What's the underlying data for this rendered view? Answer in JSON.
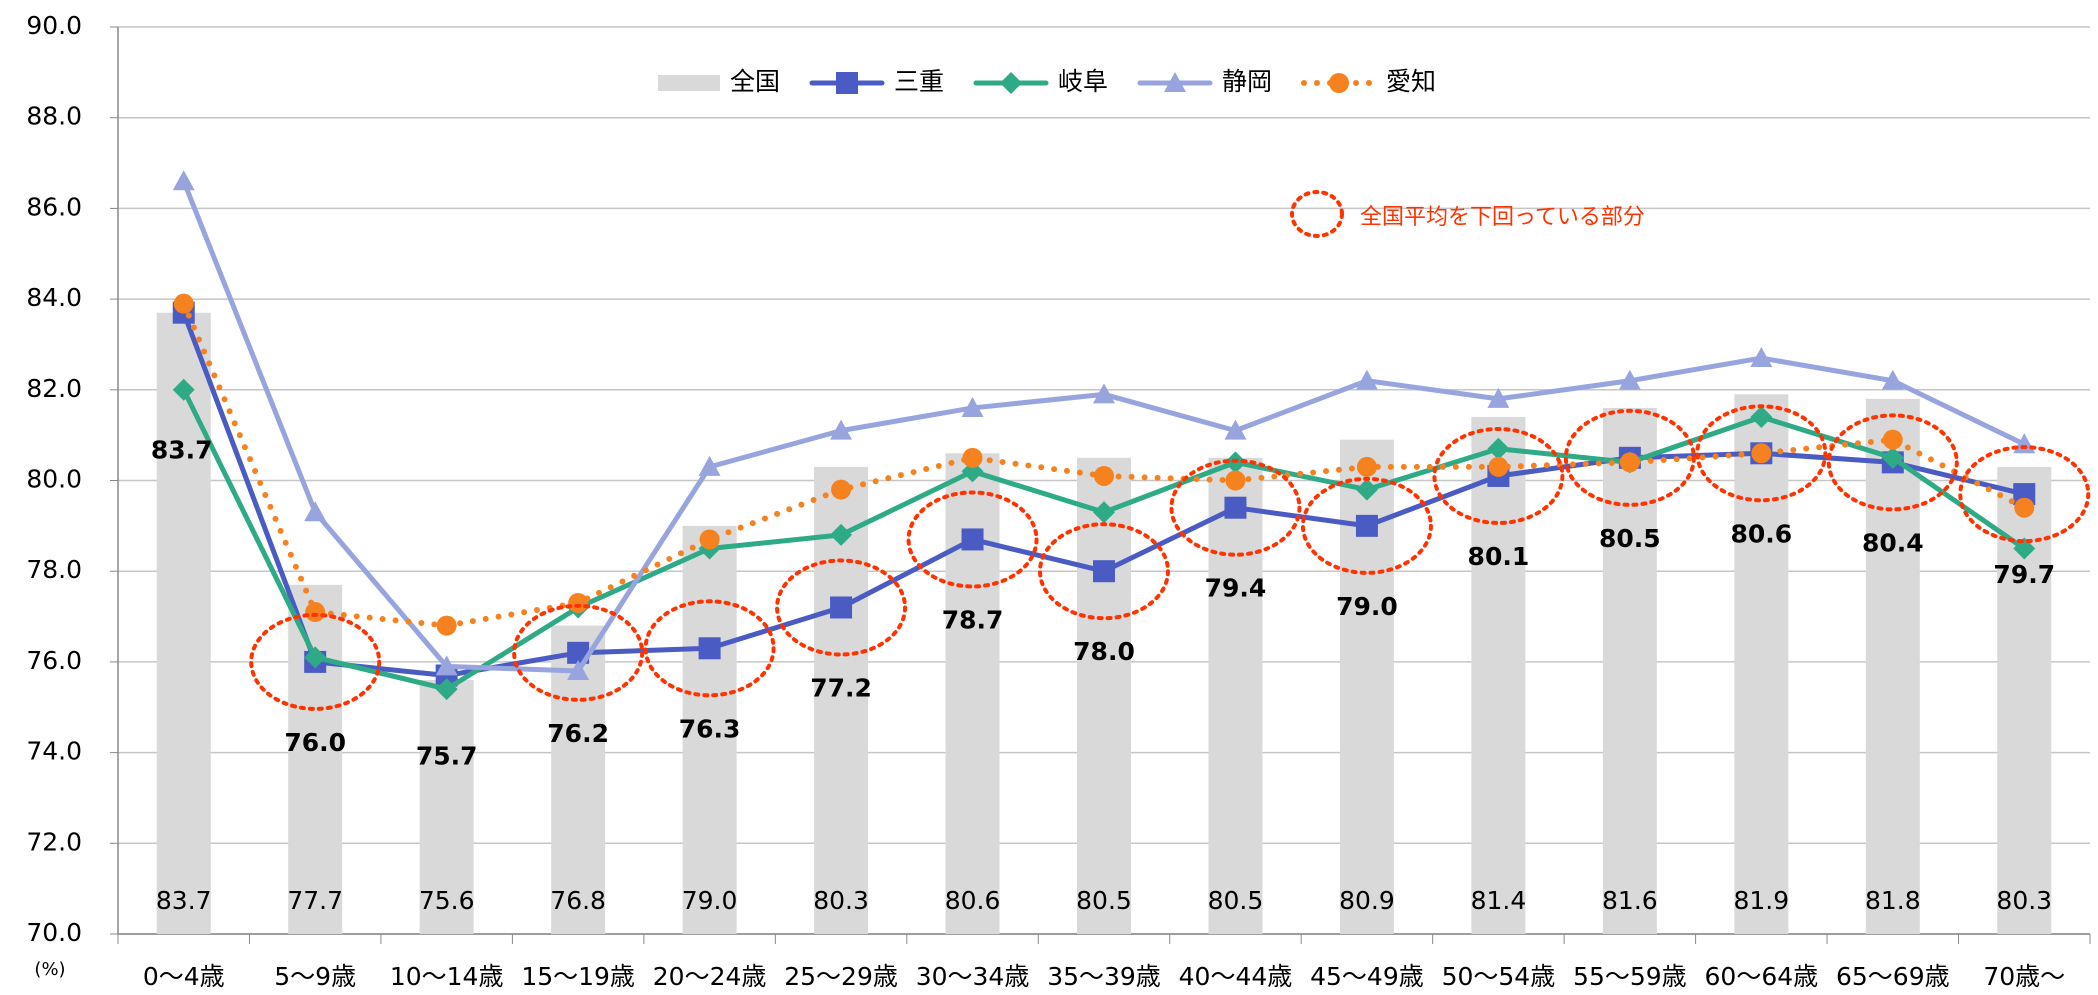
{
  "chart_data": {
    "type": "bar-line",
    "y_unit_label": "(%)",
    "annotation": "全国平均を下回っている部分",
    "categories": [
      "0〜4歳",
      "5〜9歳",
      "10〜14歳",
      "15〜19歳",
      "20〜24歳",
      "25〜29歳",
      "30〜34歳",
      "35〜39歳",
      "40〜44歳",
      "45〜49歳",
      "50〜54歳",
      "55〜59歳",
      "60〜64歳",
      "65〜69歳",
      "70歳〜"
    ],
    "series": [
      {
        "name": "全国",
        "type": "bar",
        "color": "#d9d9d9",
        "values": [
          83.7,
          77.7,
          75.6,
          76.8,
          79.0,
          80.3,
          80.6,
          80.5,
          80.5,
          80.9,
          81.4,
          81.6,
          81.9,
          81.8,
          80.3
        ],
        "value_labels": [
          "83.7",
          "77.7",
          "75.6",
          "76.8",
          "79.0",
          "80.3",
          "80.6",
          "80.5",
          "80.5",
          "80.9",
          "81.4",
          "81.6",
          "81.9",
          "81.8",
          "80.3"
        ]
      },
      {
        "name": "三重",
        "type": "line",
        "color": "#4a5bc4",
        "marker": "square",
        "values": [
          83.7,
          76.0,
          75.7,
          76.2,
          76.3,
          77.2,
          78.7,
          78.0,
          79.4,
          79.0,
          80.1,
          80.5,
          80.6,
          80.4,
          79.7
        ],
        "value_labels": [
          "83.7",
          "76.0",
          "75.7",
          "76.2",
          "76.3",
          "77.2",
          "78.7",
          "78.0",
          "79.4",
          "79.0",
          "80.1",
          "80.5",
          "80.6",
          "80.4",
          "79.7"
        ]
      },
      {
        "name": "岐阜",
        "type": "line",
        "color": "#2eaa86",
        "marker": "diamond",
        "values": [
          82.0,
          76.1,
          75.4,
          77.2,
          78.5,
          78.8,
          80.2,
          79.3,
          80.4,
          79.8,
          80.7,
          80.4,
          81.4,
          80.5,
          78.5
        ]
      },
      {
        "name": "静岡",
        "type": "line",
        "color": "#98a4dd",
        "marker": "triangle",
        "values": [
          86.6,
          79.3,
          75.9,
          75.8,
          80.3,
          81.1,
          81.6,
          81.9,
          81.1,
          82.2,
          81.8,
          82.2,
          82.7,
          82.2,
          80.8
        ]
      },
      {
        "name": "愛知",
        "type": "line",
        "color": "#f5821f",
        "marker": "circle",
        "dash": "dotted",
        "values": [
          83.9,
          77.1,
          76.8,
          77.3,
          78.7,
          79.8,
          80.5,
          80.1,
          80.0,
          80.3,
          80.3,
          80.4,
          80.6,
          80.9,
          79.4
        ]
      }
    ],
    "highlight_color": "#ff3300",
    "ylim": [
      70,
      90
    ],
    "yticks": [
      {
        "value": 70,
        "label": "70.0"
      },
      {
        "value": 72,
        "label": "72.0"
      },
      {
        "value": 74,
        "label": "74.0"
      },
      {
        "value": 76,
        "label": "76.0"
      },
      {
        "value": 78,
        "label": "78.0"
      },
      {
        "value": 80,
        "label": "80.0"
      },
      {
        "value": 82,
        "label": "82.0"
      },
      {
        "value": 84,
        "label": "84.0"
      },
      {
        "value": 86,
        "label": "86.0"
      },
      {
        "value": 88,
        "label": "88.0"
      },
      {
        "value": 90,
        "label": "90.0"
      }
    ],
    "grid": true
  }
}
